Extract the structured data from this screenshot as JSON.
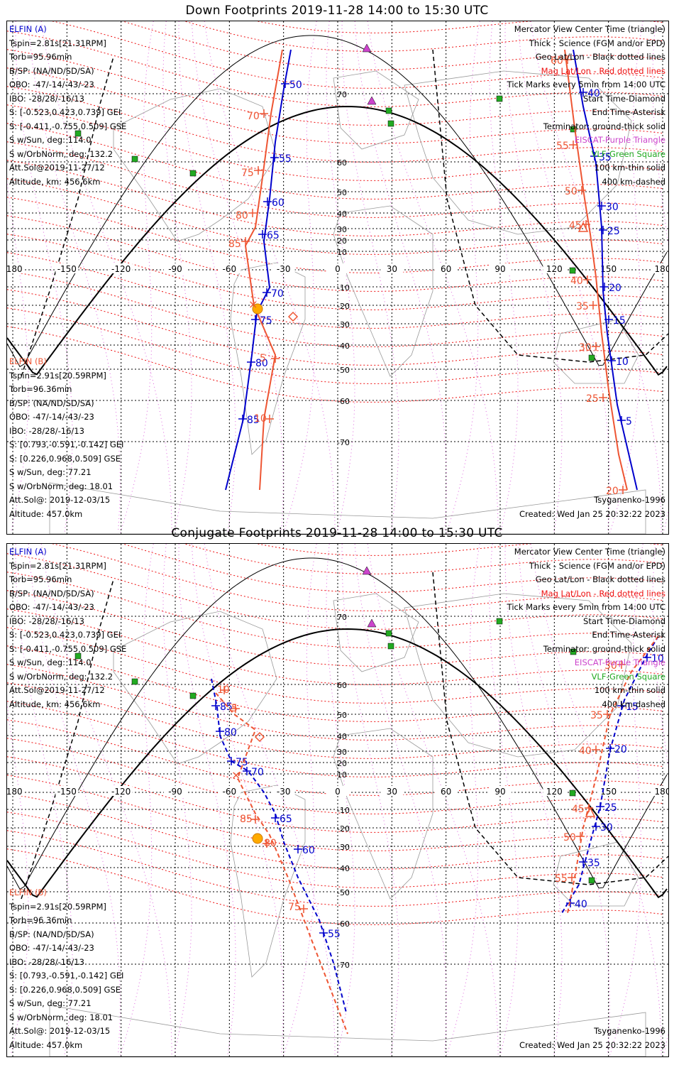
{
  "panels": [
    {
      "title": "Down Footprints 2019-11-28 14:00 to 15:30 UTC",
      "elfin_a": [
        "ELFIN (A)",
        "Tspin=2.81s[21.31RPM]",
        "Torb=95.96min",
        "B/SP: (NA/ND/SD/SA)",
        "OBO: -47/-14/-43/-23",
        "IBO: -28/28/-16/13",
        "S: [-0.523,0.423,0.739] GEI",
        "S: [-0.411,-0.755,0.509] GSE",
        "S w/Sun, deg: 114.0",
        "S w/OrbNorm, deg: 132.2",
        "Att.Sol@2019-11-27/12",
        "Altitude, km: 456.6km"
      ],
      "elfin_b": [
        "ELFIN (B)",
        "Tspin=2.91s[20.59RPM]",
        "Torb=96.36min",
        "B/SP: (NA/ND/SD/SA)",
        "OBO: -47/-14/-43/-23",
        "IBO: -28/28/-16/13",
        "S: [0.793,-0.591,-0.142] GEI",
        "S: [0.226,0.968,0.509] GSE",
        "S w/Sun, deg: 77.21",
        "S w/OrbNorm, deg: 18.01",
        "Att.Sol@: 2019-12-03/15",
        "Altitude: 457.0km"
      ],
      "legend": [
        "Mercator View Center Time (triangle)",
        "Thick - Science (FGM and/or EPD)",
        "Geo Lat/Lon - Black dotted lines",
        "Mag Lat/Lon - Red dotted lines",
        "Tick Marks every 5min from 14:00 UTC",
        "Start Time-Diamond",
        "End Time-Asterisk",
        "Terminator: ground-thick solid",
        "EISCAT-Purple Triangle",
        "VLF-Green Square",
        "100 km-thin solid",
        "400 km-dashed"
      ],
      "model": "Tsyganenko-1996",
      "created": "Created: Wed Jan 25 20:32:22 2023",
      "lon_labels": [
        "-180",
        "-150",
        "-120",
        "-90",
        "-60",
        "-30",
        "0",
        "30",
        "60",
        "90",
        "120",
        "150",
        "180"
      ],
      "lat_labels": [
        "70",
        "60",
        "50",
        "40",
        "30",
        "20",
        "10",
        "-10",
        "-20",
        "-30",
        "-40",
        "-50",
        "-60",
        "-70"
      ],
      "track_a_west_ticks": [
        "50",
        "55",
        "60",
        "65",
        "70",
        "75",
        "80",
        "85"
      ],
      "track_b_west_ticks": [
        "70",
        "75",
        "80",
        "85",
        "5",
        "10"
      ],
      "track_a_east_ticks": [
        "40",
        "35",
        "30",
        "25",
        "20",
        "15",
        "10",
        "5"
      ],
      "track_b_east_ticks": [
        "60",
        "55",
        "50",
        "45",
        "40",
        "35",
        "30",
        "25",
        "20"
      ]
    },
    {
      "title": "Conjugate Footprints 2019-11-28 14:00 to 15:30 UTC",
      "elfin_a": [
        "ELFIN (A)",
        "Tspin=2.81s[21.31RPM]",
        "Torb=95.96min",
        "B/SP: (NA/ND/SD/SA)",
        "OBO: -47/-14/-43/-23",
        "IBO: -28/28/-16/13",
        "S: [-0.523,0.423,0.739] GEI",
        "S: [-0.411,-0.755,0.509] GSE",
        "S w/Sun, deg: 114.0",
        "S w/OrbNorm, deg: 132.2",
        "Att.Sol@2019-11-27/12",
        "Altitude, km: 456.6km"
      ],
      "elfin_b": [
        "ELFIN (B)",
        "Tspin=2.91s[20.59RPM]",
        "Torb=96.36min",
        "B/SP: (NA/ND/SD/SA)",
        "OBO: -47/-14/-43/-23",
        "IBO: -28/28/-16/13",
        "S: [0.793,-0.591,-0.142] GEI",
        "S: [0.226,0.968,0.509] GSE",
        "S w/Sun, deg: 77.21",
        "S w/OrbNorm, deg: 18.01",
        "Att.Sol@: 2019-12-03/15",
        "Altitude: 457.0km"
      ],
      "legend": [
        "Mercator View Center Time (triangle)",
        "Thick - Science (FGM and/or EPD)",
        "Geo Lat/Lon - Black dotted lines",
        "Mag Lat/Lon - Red dotted lines",
        "Tick Marks every 5min from 14:00 UTC",
        "Start Time-Diamond",
        "End Time-Asterisk",
        "Terminator: ground-thick solid",
        "EISCAT-Purple Triangle",
        "VLF-Green Square",
        "100 km-thin solid",
        "400 km-dashed"
      ],
      "model": "Tsyganenko-1996",
      "created": "Created: Wed Jan 25 20:32:22 2023",
      "lon_labels": [
        "-180",
        "-150",
        "-120",
        "-90",
        "-60",
        "-30",
        "0",
        "30",
        "60",
        "90",
        "120",
        "150",
        "180"
      ],
      "lat_labels": [
        "70",
        "60",
        "50",
        "40",
        "30",
        "20",
        "10",
        "-10",
        "-20",
        "-30",
        "-40",
        "-50",
        "-60",
        "-70"
      ],
      "track_a_west_ticks": [
        "85",
        "80",
        "75",
        "70",
        "65",
        "60",
        "55"
      ],
      "track_b_west_ticks": [
        "10",
        "5",
        "85",
        "80",
        "75"
      ],
      "track_a_east_ticks": [
        "10",
        "15",
        "20",
        "25",
        "30",
        "35",
        "40"
      ],
      "track_b_east_ticks": [
        "30",
        "35",
        "40",
        "45",
        "50",
        "55"
      ]
    }
  ],
  "colors": {
    "elfin_a": "#0000cc",
    "elfin_b": "#ee5533",
    "mag_grid": "#ee1111",
    "geo_grid": "#000000",
    "eiscat": "#cc44cc",
    "vlf": "#22aa22",
    "sun": "#ffaa00"
  },
  "icons": [
    "eiscat-triangle-icon",
    "vlf-square-icon",
    "start-diamond-icon",
    "end-asterisk-icon",
    "view-center-triangle-icon",
    "sun-icon"
  ]
}
